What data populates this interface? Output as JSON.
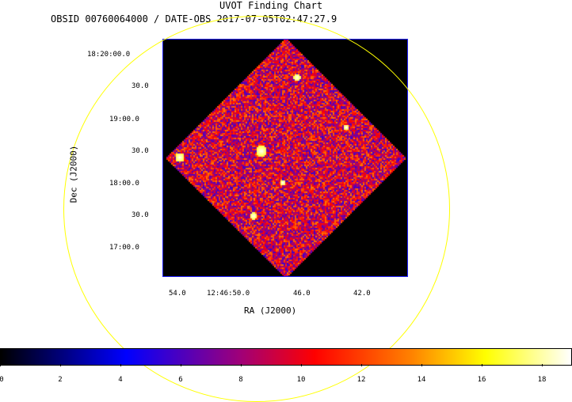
{
  "header": {
    "title": "UVOT Finding Chart",
    "subtitle": "OBSID 00760064000 / DATE-OBS 2017-07-05T02:47:27.9"
  },
  "axes": {
    "xlabel": "RA (J2000)",
    "ylabel": "Dec (J2000)",
    "dec_ticks": [
      "18:20:00.0",
      "30.0",
      "19:00.0",
      "30.0",
      "18:00.0",
      "30.0",
      "17:00.0"
    ],
    "ra_ticks": [
      "54.0",
      "12:46:50.0",
      "46.0",
      "42.0"
    ]
  },
  "colorbar": {
    "ticks": [
      "0",
      "2",
      "4",
      "6",
      "8",
      "10",
      "12",
      "14",
      "16",
      "18"
    ],
    "min": 0,
    "max": 19
  },
  "colors": {
    "circle": "#ffff00",
    "frame_border": "#2020ff"
  }
}
